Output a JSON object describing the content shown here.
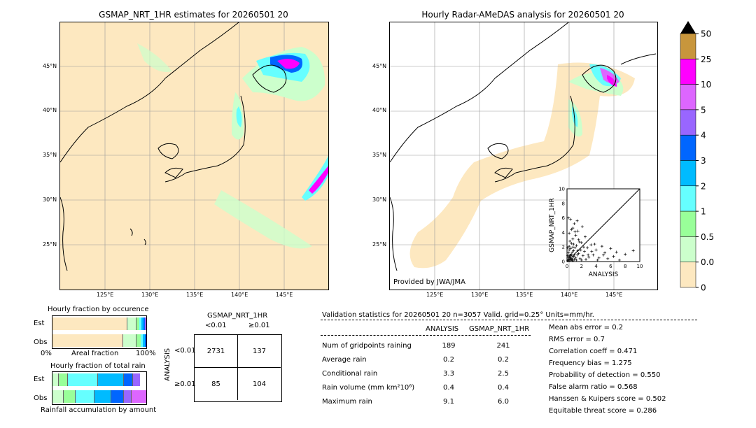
{
  "left_map": {
    "title": "GSMAP_NRT_1HR estimates for 20260501 20"
  },
  "right_map": {
    "title": "Hourly Radar-AMeDAS analysis for 20260501 20",
    "credit": "Provided by JWA/JMA"
  },
  "map_axes": {
    "lon_ticks": [
      "125°E",
      "130°E",
      "135°E",
      "140°E",
      "145°E"
    ],
    "lat_ticks": [
      "45°N",
      "40°N",
      "35°N",
      "30°N",
      "25°N"
    ]
  },
  "colorbar": {
    "labels": [
      "50",
      "25",
      "10",
      "5",
      "4",
      "3",
      "2",
      "1",
      "0.5",
      "0.01",
      "0"
    ],
    "colors": [
      "#c8963c",
      "#ff00ff",
      "#dd66ff",
      "#9966ff",
      "#0066ff",
      "#00bbff",
      "#66ffff",
      "#99ff99",
      "#ccffcc",
      "#fde8c0"
    ],
    "extend_color": "#000000"
  },
  "fraction_panels": {
    "occurrence_title": "Hourly fraction by occurence",
    "total_title": "Hourly fraction of total rain",
    "row_est": "Est",
    "row_obs": "Obs",
    "axis_left": "0%",
    "axis_mid": "Areal fraction",
    "axis_right": "100%",
    "bottom_label": "Rainfall accumulation by amount"
  },
  "contingency": {
    "title": "GSMAP_NRT_1HR",
    "col_lt": "<0.01",
    "col_ge": "≥0.01",
    "row_axis": "ANALYSIS",
    "row_lt": "<0.01",
    "row_ge": "≥0.01",
    "cells": [
      "2731",
      "137",
      "85",
      "104"
    ]
  },
  "validation": {
    "header": "Validation statistics for 20260501 20  n=3057 Valid. grid=0.25°  Units=mm/hr.",
    "col_analysis": "ANALYSIS",
    "col_gsmap": "GSMAP_NRT_1HR",
    "rows": [
      {
        "label": "Num of gridpoints raining",
        "analysis": "189",
        "gsmap": "241"
      },
      {
        "label": "Average rain",
        "analysis": "0.2",
        "gsmap": "0.2"
      },
      {
        "label": "Conditional rain",
        "analysis": "3.3",
        "gsmap": "2.5"
      },
      {
        "label": "Rain volume (mm km²10⁶)",
        "analysis": "0.4",
        "gsmap": "0.4"
      },
      {
        "label": "Maximum rain",
        "analysis": "9.1",
        "gsmap": "6.0"
      }
    ],
    "scores": [
      "Mean abs error =    0.2",
      "RMS error =    0.7",
      "Correlation coeff =  0.471",
      "Frequency bias =  1.275",
      "Probability of detection =  0.550",
      "False alarm ratio =  0.568",
      "Hanssen & Kuipers score =  0.502",
      "Equitable threat score =  0.286"
    ]
  },
  "chart_data": {
    "type": "scatter",
    "xlabel": "ANALYSIS",
    "ylabel": "GSMAP_NRT_1HR",
    "xlim": [
      0,
      10
    ],
    "ylim": [
      0,
      10
    ],
    "ticks": [
      "0",
      "2",
      "4",
      "6",
      "8",
      "10"
    ],
    "points": [
      [
        0.1,
        0.1
      ],
      [
        0.2,
        0.3
      ],
      [
        0.3,
        0.1
      ],
      [
        0.4,
        0.6
      ],
      [
        0.5,
        0.2
      ],
      [
        0.6,
        1.0
      ],
      [
        0.7,
        0.4
      ],
      [
        0.8,
        0.1
      ],
      [
        0.9,
        1.5
      ],
      [
        1.0,
        0.3
      ],
      [
        0.2,
        1.2
      ],
      [
        0.3,
        2.1
      ],
      [
        0.4,
        0.9
      ],
      [
        0.5,
        1.8
      ],
      [
        0.6,
        2.5
      ],
      [
        0.7,
        0.2
      ],
      [
        0.8,
        3.1
      ],
      [
        0.9,
        0.7
      ],
      [
        1.1,
        1.9
      ],
      [
        1.2,
        0.5
      ],
      [
        0.1,
        0.8
      ],
      [
        0.2,
        0.5
      ],
      [
        0.3,
        1.6
      ],
      [
        0.5,
        0.8
      ],
      [
        0.4,
        2.8
      ],
      [
        0.6,
        0.3
      ],
      [
        1.3,
        2.2
      ],
      [
        1.4,
        0.9
      ],
      [
        1.5,
        4.2
      ],
      [
        1.6,
        1.1
      ],
      [
        1.8,
        0.4
      ],
      [
        2.0,
        2.6
      ],
      [
        2.2,
        0.8
      ],
      [
        2.4,
        1.4
      ],
      [
        2.6,
        0.3
      ],
      [
        2.8,
        1.9
      ],
      [
        3.0,
        0.6
      ],
      [
        3.3,
        2.3
      ],
      [
        3.6,
        0.9
      ],
      [
        4.0,
        1.6
      ],
      [
        1.0,
        5.2
      ],
      [
        1.2,
        3.6
      ],
      [
        0.8,
        4.6
      ],
      [
        1.6,
        3.0
      ],
      [
        2.1,
        4.8
      ],
      [
        2.5,
        3.4
      ],
      [
        0.3,
        3.9
      ],
      [
        0.6,
        4.4
      ],
      [
        1.4,
        5.6
      ],
      [
        0.9,
        2.4
      ],
      [
        4.4,
        0.5
      ],
      [
        4.8,
        2.1
      ],
      [
        5.2,
        1.2
      ],
      [
        5.6,
        0.4
      ],
      [
        6.0,
        1.8
      ],
      [
        6.4,
        0.7
      ],
      [
        6.8,
        1.3
      ],
      [
        7.2,
        0.2
      ],
      [
        8.0,
        1.0
      ],
      [
        9.1,
        1.5
      ],
      [
        0.2,
        6.0
      ],
      [
        0.5,
        5.8
      ],
      [
        1.1,
        4.1
      ],
      [
        1.9,
        1.6
      ],
      [
        2.3,
        2.0
      ],
      [
        2.9,
        0.9
      ],
      [
        3.4,
        1.4
      ],
      [
        3.8,
        2.4
      ],
      [
        4.2,
        0.2
      ],
      [
        5.0,
        0.9
      ],
      [
        0.4,
        0.4
      ],
      [
        0.7,
        1.3
      ],
      [
        1.0,
        0.9
      ],
      [
        1.3,
        0.2
      ],
      [
        1.7,
        2.7
      ],
      [
        0.3,
        0.7
      ],
      [
        0.8,
        2.0
      ],
      [
        1.5,
        1.5
      ],
      [
        2.0,
        0.2
      ],
      [
        0.1,
        1.9
      ]
    ]
  }
}
